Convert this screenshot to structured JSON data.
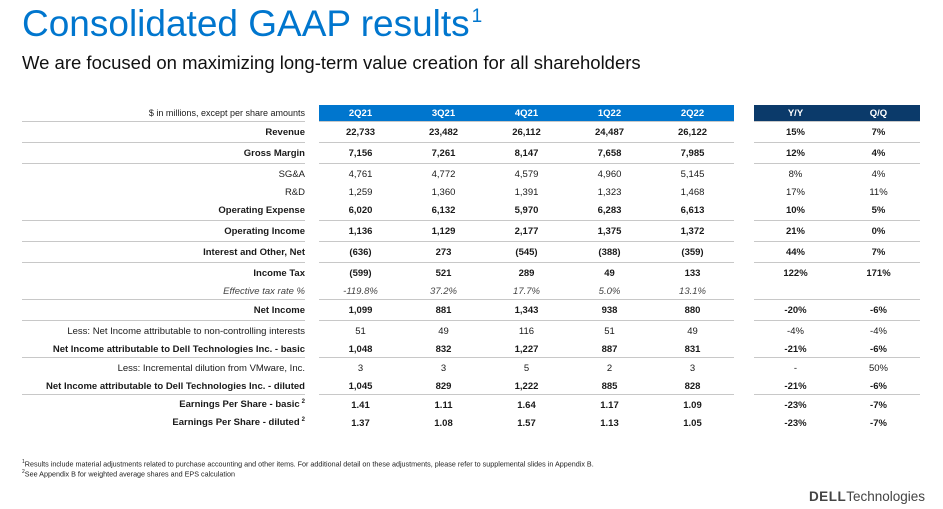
{
  "title": "Consolidated GAAP results",
  "title_sup": "1",
  "subtitle": "We are focused on maximizing long-term value creation for all shareholders",
  "table": {
    "units_note": "$ in millions, except per share amounts",
    "quarters": [
      "2Q21",
      "3Q21",
      "4Q21",
      "1Q22",
      "2Q22"
    ],
    "change_headers": [
      "Y/Y",
      "Q/Q"
    ],
    "rows": [
      {
        "label": "Revenue",
        "values": [
          "22,733",
          "23,482",
          "26,112",
          "24,487",
          "26,122"
        ],
        "yy": "15%",
        "qq": "7%",
        "style": "bold sep tall"
      },
      {
        "label": "Gross Margin",
        "values": [
          "7,156",
          "7,261",
          "8,147",
          "7,658",
          "7,985"
        ],
        "yy": "12%",
        "qq": "4%",
        "style": "bold sep tall"
      },
      {
        "label": "SG&A",
        "values": [
          "4,761",
          "4,772",
          "4,579",
          "4,960",
          "5,145"
        ],
        "yy": "8%",
        "qq": "4%",
        "style": "sep tall"
      },
      {
        "label": "R&D",
        "values": [
          "1,259",
          "1,360",
          "1,391",
          "1,323",
          "1,468"
        ],
        "yy": "17%",
        "qq": "11%",
        "style": ""
      },
      {
        "label": "Operating Expense",
        "values": [
          "6,020",
          "6,132",
          "5,970",
          "6,283",
          "6,613"
        ],
        "yy": "10%",
        "qq": "5%",
        "style": "bold tall"
      },
      {
        "label": "Operating Income",
        "values": [
          "1,136",
          "1,129",
          "2,177",
          "1,375",
          "1,372"
        ],
        "yy": "21%",
        "qq": "0%",
        "style": "bold sep tall"
      },
      {
        "label": "Interest and Other, Net",
        "values": [
          "(636)",
          "273",
          "(545)",
          "(388)",
          "(359)"
        ],
        "yy": "44%",
        "qq": "7%",
        "style": "bold sep tall"
      },
      {
        "label": "Income Tax",
        "values": [
          "(599)",
          "521",
          "289",
          "49",
          "133"
        ],
        "yy": "122%",
        "qq": "171%",
        "style": "bold sep tall"
      },
      {
        "label": "Effective tax rate %",
        "values": [
          "-119.8%",
          "37.2%",
          "17.7%",
          "5.0%",
          "13.1%"
        ],
        "yy": "",
        "qq": "",
        "style": "it"
      },
      {
        "label": "Net Income",
        "values": [
          "1,099",
          "881",
          "1,343",
          "938",
          "880"
        ],
        "yy": "-20%",
        "qq": "-6%",
        "style": "bold sep tall"
      },
      {
        "label": "Less: Net Income attributable to non-controlling interests",
        "values": [
          "51",
          "49",
          "116",
          "51",
          "49"
        ],
        "yy": "-4%",
        "qq": "-4%",
        "style": "sep tall"
      },
      {
        "label": "Net Income attributable to Dell Technologies Inc. - basic",
        "values": [
          "1,048",
          "832",
          "1,227",
          "887",
          "831"
        ],
        "yy": "-21%",
        "qq": "-6%",
        "style": "bold"
      },
      {
        "label": "Less: Incremental dilution from VMware, Inc.",
        "values": [
          "3",
          "3",
          "5",
          "2",
          "3"
        ],
        "yy": "-",
        "qq": "50%",
        "style": "sep tall"
      },
      {
        "label": "Net Income attributable to Dell Technologies Inc. - diluted",
        "values": [
          "1,045",
          "829",
          "1,222",
          "885",
          "828"
        ],
        "yy": "-21%",
        "qq": "-6%",
        "style": "bold"
      },
      {
        "label": "Earnings Per Share - basic",
        "label_sup": "2",
        "values": [
          "1.41",
          "1.11",
          "1.64",
          "1.17",
          "1.09"
        ],
        "yy": "-23%",
        "qq": "-7%",
        "style": "bold sep tall"
      },
      {
        "label": "Earnings Per Share - diluted",
        "label_sup": "2",
        "values": [
          "1.37",
          "1.08",
          "1.57",
          "1.13",
          "1.05"
        ],
        "yy": "-23%",
        "qq": "-7%",
        "style": "bold"
      }
    ]
  },
  "footnotes": [
    {
      "mark": "1",
      "text": "Results include material adjustments related to purchase accounting and other items.  For additional detail on these adjustments, please refer to supplemental slides in Appendix B."
    },
    {
      "mark": "2",
      "text": "See Appendix B for weighted average shares and EPS calculation"
    }
  ],
  "logo": {
    "brand": "DELL",
    "suffix": "Technologies"
  }
}
